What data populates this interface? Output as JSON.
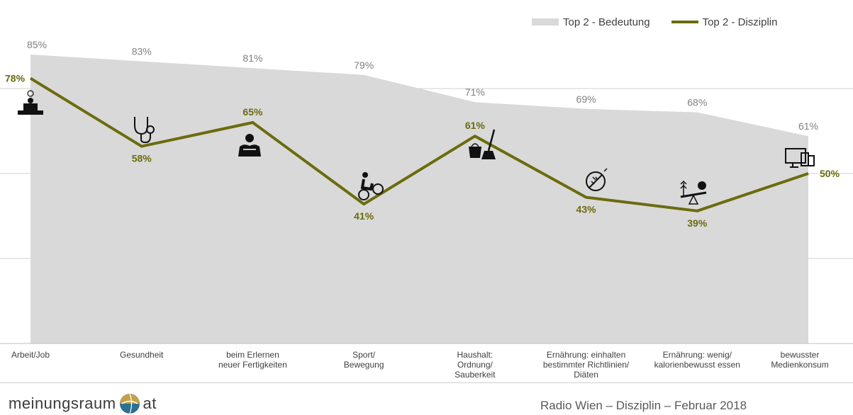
{
  "chart_data": {
    "type": "area",
    "categories": [
      "Arbeit/Job",
      "Gesundheit",
      "beim Erlernen\nneuer Fertigkeiten",
      "Sport/\nBewegung",
      "Haushalt:\nOrdnung/\nSauberkeit",
      "Ernährung: einhalten\nbestimmter Richtlinien/\nDiäten",
      "Ernährung: wenig/\nkalorienbewusst essen",
      "bewusster\nMedienkonsum"
    ],
    "series": [
      {
        "name": "Top  2 - Bedeutung",
        "kind": "area",
        "color": "#d9d9d9",
        "values": [
          85,
          83,
          81,
          79,
          71,
          69,
          68,
          61
        ]
      },
      {
        "name": "Top 2 - Disziplin",
        "kind": "line",
        "color": "#6b6b0e",
        "values": [
          78,
          58,
          65,
          41,
          61,
          43,
          39,
          50
        ]
      }
    ],
    "ylim": [
      0,
      100
    ],
    "gridlines": [
      25,
      50,
      75
    ],
    "legend_position": "top-right",
    "value_suffix": "%",
    "category_icons": [
      "desk-clock-icon",
      "stethoscope-icon",
      "reading-icon",
      "cyclist-icon",
      "cleaning-icon",
      "no-diet-icon",
      "balance-icon",
      "devices-icon"
    ]
  },
  "footer": {
    "logo_left": "meinungsraum",
    "logo_right": "at",
    "caption": "Radio Wien – Disziplin – Februar 2018"
  }
}
